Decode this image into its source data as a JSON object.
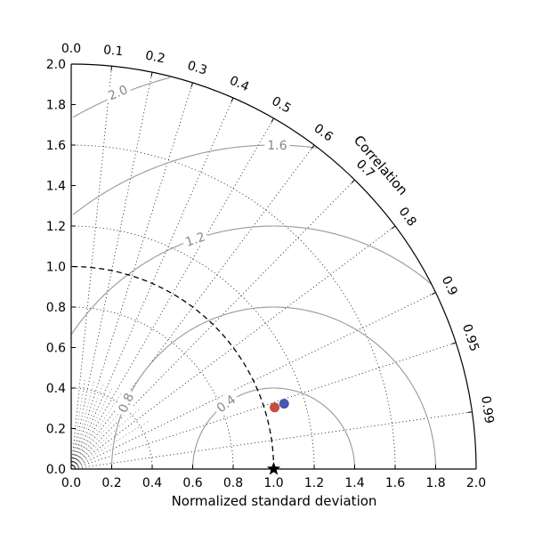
{
  "chart_data": {
    "type": "scatter",
    "title": "",
    "xlabel": "Normalized standard deviation",
    "correlation_label": "Correlation",
    "xlim": [
      0,
      2.0
    ],
    "ylim": [
      0,
      2.0
    ],
    "x_ticks": [
      0.0,
      0.2,
      0.4,
      0.6,
      0.8,
      1.0,
      1.2,
      1.4,
      1.6,
      1.8,
      2.0
    ],
    "x_tick_labels": [
      "0.0",
      "0.2",
      "0.4",
      "0.6",
      "0.8",
      "1.0",
      "1.2",
      "1.4",
      "1.6",
      "1.8",
      "2.0"
    ],
    "y_ticks": [
      0.0,
      0.2,
      0.4,
      0.6,
      0.8,
      1.0,
      1.2,
      1.4,
      1.6,
      1.8,
      2.0
    ],
    "y_tick_labels": [
      "0.0",
      "0.2",
      "0.4",
      "0.6",
      "0.8",
      "1.0",
      "1.2",
      "1.4",
      "1.6",
      "1.8",
      "2.0"
    ],
    "correlation_ticks": [
      0.0,
      0.1,
      0.2,
      0.3,
      0.4,
      0.5,
      0.6,
      0.7,
      0.8,
      0.9,
      0.95,
      0.99
    ],
    "correlation_tick_labels": [
      "0.0",
      "0.1",
      "0.2",
      "0.3",
      "0.4",
      "0.5",
      "0.6",
      "0.7",
      "0.8",
      "0.9",
      "0.95",
      "0.99"
    ],
    "std_gridlines": [
      0.4,
      0.8,
      1.2,
      1.6
    ],
    "corr_gridlines": [
      0.1,
      0.2,
      0.3,
      0.4,
      0.5,
      0.6,
      0.7,
      0.8,
      0.9,
      0.95,
      0.99
    ],
    "rms_contours": [
      0.4,
      0.8,
      1.2,
      1.6,
      2.0
    ],
    "rms_contour_labels": [
      {
        "level": 0.4,
        "text": "0.4"
      },
      {
        "level": 0.8,
        "text": "0.8"
      },
      {
        "level": 1.2,
        "text": "1.2"
      },
      {
        "level": 1.6,
        "text": "1.6"
      },
      {
        "level": 2.0,
        "text": "2.0"
      }
    ],
    "reference": {
      "std": 1.0
    },
    "points": [
      {
        "std": 1.05,
        "corr": 0.957,
        "color": "#c0392b"
      },
      {
        "std": 1.1,
        "corr": 0.956,
        "color": "#3344aa"
      }
    ],
    "grid": true,
    "colors": {
      "axes": "#000000",
      "grid": "#000000",
      "contour": "#999999",
      "contour_label": "#888888",
      "reference_marker": "#000000"
    }
  }
}
